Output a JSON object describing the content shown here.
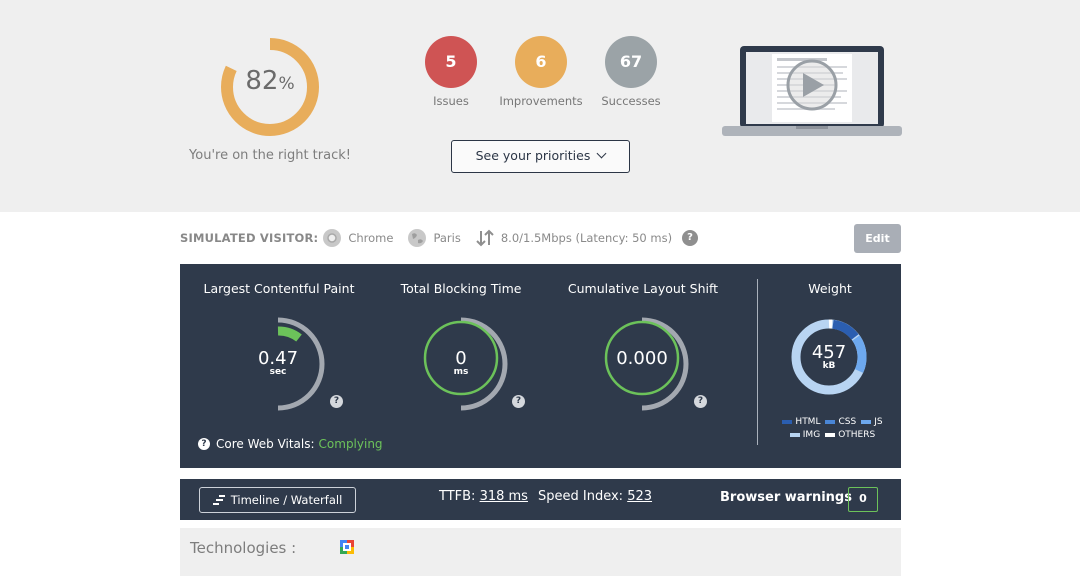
{
  "summary": {
    "score": "82",
    "score_unit": "%",
    "score_fraction": 0.82,
    "message": "You're on the right track!",
    "badges": [
      {
        "count": "5",
        "label": "Issues",
        "color": "#cf5454"
      },
      {
        "count": "6",
        "label": "Improvements",
        "color": "#e8ad5b"
      },
      {
        "count": "67",
        "label": "Successes",
        "color": "#9ba3a7"
      }
    ],
    "priorities_button": "See your priorities",
    "accent_color": "#e8ad5b"
  },
  "simulated_visitor": {
    "label": "SIMULATED VISITOR:",
    "browser": "Chrome",
    "location": "Paris",
    "connection": "8.0/1.5Mbps (Latency: 50 ms)",
    "help": "?",
    "edit_button": "Edit"
  },
  "metrics": [
    {
      "title": "Largest Contentful Paint",
      "value": "0.47",
      "unit": "sec",
      "help": "?"
    },
    {
      "title": "Total Blocking Time",
      "value": "0",
      "unit": "ms",
      "help": "?"
    },
    {
      "title": "Cumulative Layout Shift",
      "value": "0.000",
      "unit": "",
      "help": "?"
    }
  ],
  "core_web_vitals": {
    "q": "?",
    "label": "Core Web Vitals:",
    "status": "Complying",
    "status_color": "#6cc25a"
  },
  "weight": {
    "title": "Weight",
    "value": "457",
    "unit": "kB",
    "legend_row1": [
      "HTML",
      "CSS",
      "JS"
    ],
    "legend_row2": [
      "IMG",
      "OTHERS"
    ]
  },
  "footer_bar": {
    "timeline_button": "Timeline / Waterfall",
    "ttfb_label": "TTFB:",
    "ttfb_value": "318 ms",
    "speed_label": "Speed Index:",
    "speed_value": "523",
    "browser_warnings_label": "Browser warnings",
    "browser_warnings_count": "0"
  },
  "technologies": {
    "label": "Technologies :"
  }
}
